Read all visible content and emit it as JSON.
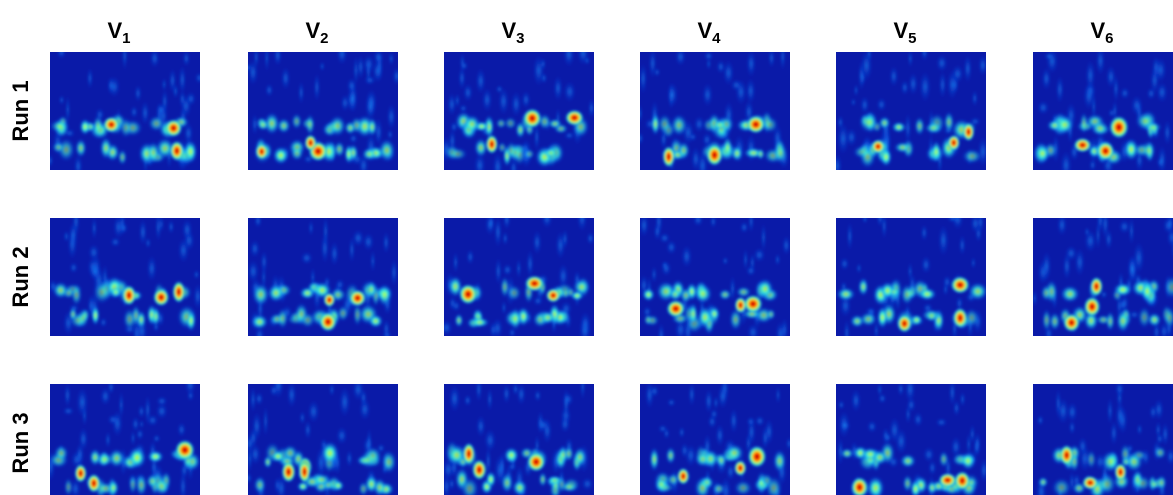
{
  "header": {
    "columns": [
      {
        "base": "V",
        "sub": "1"
      },
      {
        "base": "V",
        "sub": "2"
      },
      {
        "base": "V",
        "sub": "3"
      },
      {
        "base": "V",
        "sub": "4"
      },
      {
        "base": "V",
        "sub": "5"
      },
      {
        "base": "V",
        "sub": "6"
      }
    ]
  },
  "rows": [
    "Run 1",
    "Run 2",
    "Run 3"
  ]
}
